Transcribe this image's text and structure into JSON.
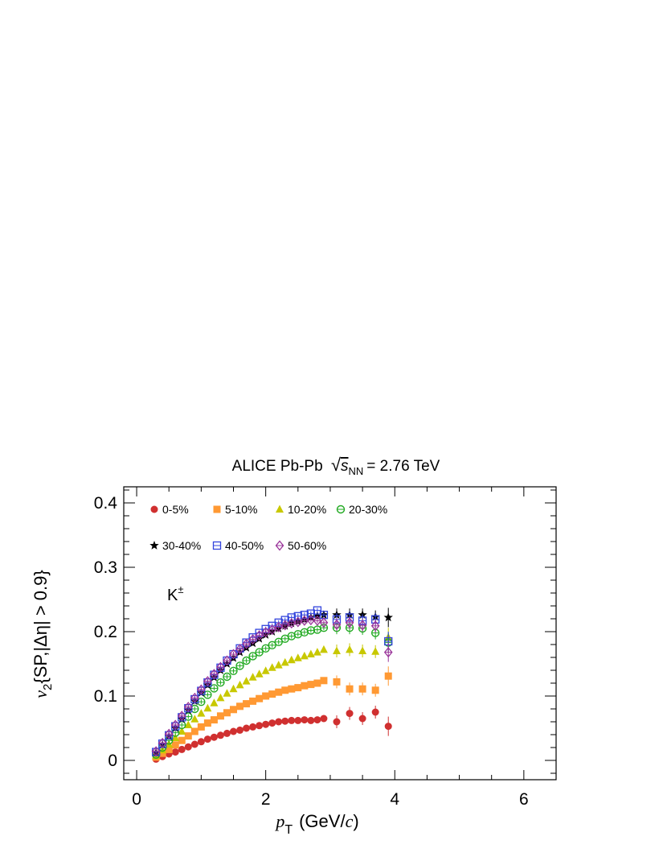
{
  "chart_data": {
    "type": "scatter",
    "title": {
      "main": "ALICE Pb-Pb",
      "energy_var": "s",
      "energy_sub": "NN",
      "energy_val": "= 2.76 TeV"
    },
    "annotation": {
      "base": "K",
      "sup": "±"
    },
    "xlabel": {
      "var": "p",
      "sub": "T",
      "rest_open": "(GeV/",
      "rest_c": "c",
      "rest_close": ")"
    },
    "ylabel": {
      "var": "v",
      "sub": "2",
      "rest": "{SP,|Δη| > 0.9}"
    },
    "xlim": [
      -0.2,
      6.5
    ],
    "ylim": [
      -0.03,
      0.425
    ],
    "xticks": [
      0,
      2,
      4,
      6
    ],
    "xtick_labels": [
      "0",
      "2",
      "4",
      "6"
    ],
    "yticks": [
      0,
      0.1,
      0.2,
      0.3,
      0.4
    ],
    "ytick_labels": [
      "0",
      "0.1",
      "0.2",
      "0.3",
      "0.4"
    ],
    "grid": false,
    "legend_position": "top-left",
    "x": [
      0.3,
      0.4,
      0.5,
      0.6,
      0.7,
      0.8,
      0.9,
      1.0,
      1.1,
      1.2,
      1.3,
      1.4,
      1.5,
      1.6,
      1.7,
      1.8,
      1.9,
      2.0,
      2.1,
      2.2,
      2.3,
      2.4,
      2.5,
      2.6,
      2.7,
      2.8,
      2.9,
      3.1,
      3.3,
      3.5,
      3.7,
      3.9
    ],
    "series": [
      {
        "name": "0-5%",
        "color": "#d03030",
        "marker": "circle-filled",
        "values": [
          0.002,
          0.006,
          0.01,
          0.013,
          0.017,
          0.021,
          0.025,
          0.029,
          0.033,
          0.036,
          0.039,
          0.042,
          0.045,
          0.047,
          0.05,
          0.052,
          0.054,
          0.056,
          0.058,
          0.06,
          0.061,
          0.062,
          0.062,
          0.063,
          0.062,
          0.063,
          0.065,
          0.06,
          0.073,
          0.065,
          0.075,
          0.053
        ]
      },
      {
        "name": "5-10%",
        "color": "#ff9933",
        "marker": "square-filled",
        "values": [
          0.005,
          0.011,
          0.017,
          0.024,
          0.031,
          0.038,
          0.045,
          0.052,
          0.058,
          0.063,
          0.069,
          0.074,
          0.079,
          0.084,
          0.088,
          0.092,
          0.096,
          0.1,
          0.103,
          0.106,
          0.109,
          0.111,
          0.113,
          0.116,
          0.118,
          0.12,
          0.124,
          0.122,
          0.111,
          0.111,
          0.109,
          0.131
        ]
      },
      {
        "name": "10-20%",
        "color": "#c8c800",
        "marker": "triangle-filled",
        "values": [
          0.007,
          0.016,
          0.025,
          0.035,
          0.045,
          0.055,
          0.064,
          0.073,
          0.081,
          0.089,
          0.097,
          0.104,
          0.111,
          0.117,
          0.123,
          0.129,
          0.134,
          0.139,
          0.144,
          0.148,
          0.152,
          0.156,
          0.159,
          0.162,
          0.165,
          0.168,
          0.172,
          0.17,
          0.172,
          0.17,
          0.169,
          0.191
        ]
      },
      {
        "name": "20-30%",
        "color": "#22aa22",
        "marker": "circle-open",
        "values": [
          0.009,
          0.02,
          0.031,
          0.043,
          0.055,
          0.068,
          0.08,
          0.091,
          0.102,
          0.112,
          0.121,
          0.13,
          0.139,
          0.147,
          0.155,
          0.162,
          0.168,
          0.174,
          0.179,
          0.184,
          0.189,
          0.193,
          0.196,
          0.199,
          0.202,
          0.203,
          0.206,
          0.206,
          0.206,
          0.205,
          0.198,
          0.183
        ]
      },
      {
        "name": "30-40%",
        "color": "#000000",
        "marker": "star-filled",
        "values": [
          0.012,
          0.024,
          0.037,
          0.05,
          0.064,
          0.078,
          0.092,
          0.105,
          0.117,
          0.129,
          0.14,
          0.15,
          0.159,
          0.168,
          0.175,
          0.182,
          0.189,
          0.195,
          0.2,
          0.205,
          0.209,
          0.213,
          0.216,
          0.219,
          0.222,
          0.224,
          0.226,
          0.226,
          0.226,
          0.226,
          0.223,
          0.222
        ]
      },
      {
        "name": "40-50%",
        "color": "#3344dd",
        "marker": "square-open",
        "values": [
          0.013,
          0.026,
          0.039,
          0.053,
          0.067,
          0.081,
          0.095,
          0.108,
          0.121,
          0.133,
          0.144,
          0.155,
          0.165,
          0.174,
          0.183,
          0.191,
          0.198,
          0.204,
          0.209,
          0.214,
          0.218,
          0.222,
          0.224,
          0.226,
          0.228,
          0.233,
          0.226,
          0.219,
          0.222,
          0.217,
          0.219,
          0.185
        ]
      },
      {
        "name": "50-60%",
        "color": "#993399",
        "marker": "diamond-open",
        "values": [
          0.014,
          0.027,
          0.041,
          0.055,
          0.069,
          0.083,
          0.097,
          0.11,
          0.123,
          0.134,
          0.145,
          0.155,
          0.165,
          0.173,
          0.181,
          0.188,
          0.194,
          0.199,
          0.203,
          0.207,
          0.21,
          0.213,
          0.215,
          0.217,
          0.218,
          0.217,
          0.214,
          0.211,
          0.214,
          0.21,
          0.209,
          0.168
        ]
      }
    ]
  }
}
